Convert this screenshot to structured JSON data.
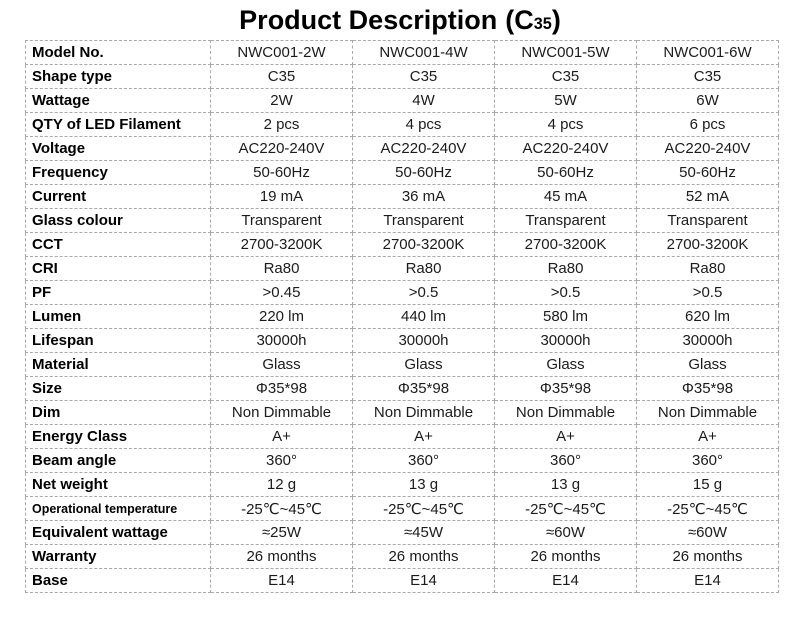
{
  "title": {
    "main": "Product Description",
    "code_open": "(C",
    "code_sub": "35",
    "code_close": ")"
  },
  "table": {
    "rows": [
      {
        "label": "Model No.",
        "values": [
          "NWC001-2W",
          "NWC001-4W",
          "NWC001-5W",
          "NWC001-6W"
        ]
      },
      {
        "label": "Shape type",
        "values": [
          "C35",
          "C35",
          "C35",
          "C35"
        ]
      },
      {
        "label": "Wattage",
        "values": [
          "2W",
          "4W",
          "5W",
          "6W"
        ]
      },
      {
        "label": "QTY of LED Filament",
        "values": [
          "2 pcs",
          "4 pcs",
          "4 pcs",
          "6 pcs"
        ]
      },
      {
        "label": "Voltage",
        "values": [
          "AC220-240V",
          "AC220-240V",
          "AC220-240V",
          "AC220-240V"
        ]
      },
      {
        "label": "Frequency",
        "values": [
          "50-60Hz",
          "50-60Hz",
          "50-60Hz",
          "50-60Hz"
        ]
      },
      {
        "label": "Current",
        "values": [
          "19 mA",
          "36 mA",
          "45 mA",
          "52 mA"
        ]
      },
      {
        "label": "Glass colour",
        "values": [
          "Transparent",
          "Transparent",
          "Transparent",
          "Transparent"
        ]
      },
      {
        "label": "CCT",
        "values": [
          "2700-3200K",
          "2700-3200K",
          "2700-3200K",
          "2700-3200K"
        ]
      },
      {
        "label": "CRI",
        "values": [
          "Ra80",
          "Ra80",
          "Ra80",
          "Ra80"
        ]
      },
      {
        "label": "PF",
        "values": [
          ">0.45",
          ">0.5",
          ">0.5",
          ">0.5"
        ]
      },
      {
        "label": "Lumen",
        "values": [
          "220 lm",
          "440 lm",
          "580 lm",
          "620 lm"
        ]
      },
      {
        "label": "Lifespan",
        "values": [
          "30000h",
          "30000h",
          "30000h",
          "30000h"
        ]
      },
      {
        "label": "Material",
        "values": [
          "Glass",
          "Glass",
          "Glass",
          "Glass"
        ]
      },
      {
        "label": "Size",
        "values": [
          "Φ35*98",
          "Φ35*98",
          "Φ35*98",
          "Φ35*98"
        ]
      },
      {
        "label": "Dim",
        "values": [
          "Non Dimmable",
          "Non Dimmable",
          "Non Dimmable",
          "Non Dimmable"
        ]
      },
      {
        "label": "Energy Class",
        "values": [
          "A+",
          "A+",
          "A+",
          "A+"
        ]
      },
      {
        "label": "Beam angle",
        "values": [
          "360°",
          "360°",
          "360°",
          "360°"
        ]
      },
      {
        "label": "Net weight",
        "values": [
          "12 g",
          "13 g",
          "13 g",
          "15 g"
        ]
      },
      {
        "label": "Operational temperature",
        "values": [
          "-25℃~45℃",
          "-25℃~45℃",
          "-25℃~45℃",
          "-25℃~45℃"
        ]
      },
      {
        "label": "Equivalent wattage",
        "values": [
          "≈25W",
          "≈45W",
          "≈60W",
          "≈60W"
        ]
      },
      {
        "label": "Warranty",
        "values": [
          "26 months",
          "26 months",
          "26 months",
          "26 months"
        ]
      },
      {
        "label": "Base",
        "values": [
          "E14",
          "E14",
          "E14",
          "E14"
        ]
      }
    ]
  }
}
